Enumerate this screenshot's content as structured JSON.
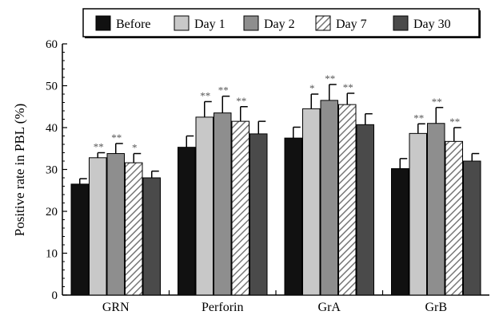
{
  "chart_data": {
    "type": "bar",
    "title": "",
    "xlabel": "",
    "ylabel": "Positive rate in PBL (%)",
    "ylim": [
      0,
      60
    ],
    "yticks": [
      0,
      10,
      20,
      30,
      40,
      50,
      60
    ],
    "grid": false,
    "legend_position": "top",
    "categories": [
      "GRN",
      "Perforin",
      "GrA",
      "GrB"
    ],
    "series": [
      {
        "name": "Before",
        "values": [
          26.5,
          35.3,
          37.5,
          30.2
        ],
        "errors": [
          1.3,
          2.7,
          2.6,
          2.4
        ],
        "sig": [
          "",
          "",
          "",
          ""
        ],
        "color": "#111111",
        "pattern": "solid"
      },
      {
        "name": "Day 1",
        "values": [
          32.8,
          42.5,
          44.5,
          38.6
        ],
        "errors": [
          1.2,
          3.7,
          3.5,
          2.3
        ],
        "sig": [
          "**",
          "**",
          "*",
          "**"
        ],
        "color": "#c8c8c8",
        "pattern": "solid"
      },
      {
        "name": "Day 2",
        "values": [
          33.8,
          43.5,
          46.5,
          41.0
        ],
        "errors": [
          2.4,
          4.0,
          3.8,
          3.8
        ],
        "sig": [
          "**",
          "**",
          "**",
          "**"
        ],
        "color": "#8e8e8e",
        "pattern": "solid"
      },
      {
        "name": "Day 7",
        "values": [
          31.6,
          41.5,
          45.5,
          36.7
        ],
        "errors": [
          2.2,
          3.5,
          2.7,
          3.3
        ],
        "sig": [
          "*",
          "**",
          "**",
          "**"
        ],
        "color": "#ffffff",
        "pattern": "hatch"
      },
      {
        "name": "Day 30",
        "values": [
          28.0,
          38.5,
          40.7,
          32.0
        ],
        "errors": [
          1.6,
          3.0,
          2.6,
          1.8
        ],
        "sig": [
          "",
          "",
          "",
          ""
        ],
        "color": "#4a4a4a",
        "pattern": "solid"
      }
    ]
  }
}
